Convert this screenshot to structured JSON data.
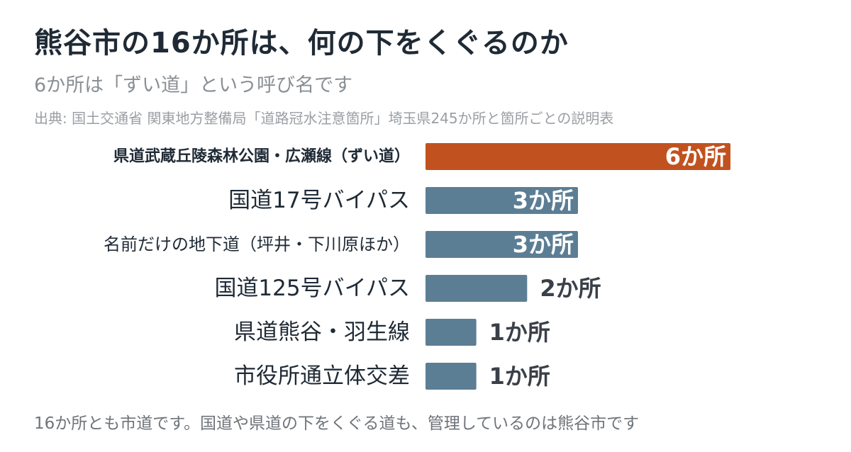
{
  "header": {
    "title": "熊谷市の16か所は、何の下をくぐるのか",
    "subtitle": "6か所は「ずい道」という呼び名です",
    "source": "出典: 国土交通省 関東地方整備局「道路冠水注意箇所」埼玉県245か所と箇所ごとの説明表"
  },
  "footer": {
    "note": "16か所とも市道です。国道や県道の下をくぐる道も、管理しているのは熊谷市です"
  },
  "colors": {
    "highlight": "#c1521f",
    "bar": "#5c7e95",
    "label_dark": "#1f2a35",
    "value_dark": "#3a4048",
    "value_on_bar": "#ffffff"
  },
  "chart_data": {
    "type": "bar",
    "orientation": "horizontal",
    "categories": [
      "県道武蔵丘陵森林公園・広瀬線（ずい道）",
      "国道17号バイパス",
      "名前だけの地下道（坪井・下川原ほか）",
      "国道125号バイパス",
      "県道熊谷・羽生線",
      "市役所通立体交差"
    ],
    "values": [
      6,
      3,
      3,
      2,
      1,
      1
    ],
    "value_labels": [
      "6か所",
      "3か所",
      "3か所",
      "2か所",
      "1か所",
      "1か所"
    ],
    "highlight_index": 0,
    "xlim": [
      0,
      6
    ],
    "grid": false,
    "legend": "none"
  }
}
